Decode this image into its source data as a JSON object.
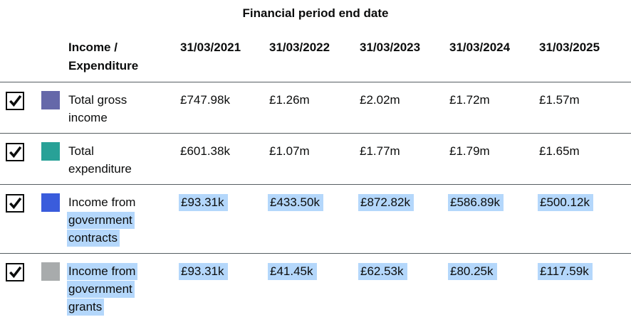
{
  "title": "Financial period end date",
  "header": {
    "row_header_lines": [
      "Income /",
      "Expenditure"
    ],
    "columns": [
      "31/03/2021",
      "31/03/2022",
      "31/03/2023",
      "31/03/2024",
      "31/03/2025"
    ]
  },
  "rows": [
    {
      "checked": true,
      "color": "#6568a9",
      "label_lines": [
        {
          "text": "Total gross",
          "hl": false
        },
        {
          "text": "income",
          "hl": false
        }
      ],
      "values": [
        {
          "text": "£747.98k",
          "hl": false
        },
        {
          "text": "£1.26m",
          "hl": false
        },
        {
          "text": "£2.02m",
          "hl": false
        },
        {
          "text": "£1.72m",
          "hl": false
        },
        {
          "text": "£1.57m",
          "hl": false
        }
      ]
    },
    {
      "checked": true,
      "color": "#28a197",
      "label_lines": [
        {
          "text": "Total",
          "hl": false
        },
        {
          "text": "expenditure",
          "hl": false
        }
      ],
      "values": [
        {
          "text": "£601.38k",
          "hl": false
        },
        {
          "text": "£1.07m",
          "hl": false
        },
        {
          "text": "£1.77m",
          "hl": false
        },
        {
          "text": "£1.79m",
          "hl": false
        },
        {
          "text": "£1.65m",
          "hl": false
        }
      ]
    },
    {
      "checked": true,
      "color": "#3a5cdc",
      "label_lines": [
        {
          "text": "Income from",
          "hl": false
        },
        {
          "text": "government",
          "hl": true
        },
        {
          "text": "contracts",
          "hl": true
        }
      ],
      "values": [
        {
          "text": "£93.31k",
          "hl": true
        },
        {
          "text": "£433.50k",
          "hl": true
        },
        {
          "text": "£872.82k",
          "hl": true
        },
        {
          "text": "£586.89k",
          "hl": true
        },
        {
          "text": "£500.12k",
          "hl": true
        }
      ]
    },
    {
      "checked": true,
      "color": "#a8abac",
      "label_lines": [
        {
          "text": "Income from",
          "hl": true
        },
        {
          "text": "government",
          "hl": true
        },
        {
          "text": "grants",
          "hl": true
        }
      ],
      "values": [
        {
          "text": "£93.31k",
          "hl": true
        },
        {
          "text": "£41.45k",
          "hl": true
        },
        {
          "text": "£62.53k",
          "hl": true
        },
        {
          "text": "£80.25k",
          "hl": true
        },
        {
          "text": "£117.59k",
          "hl": true
        }
      ]
    }
  ],
  "colors": {
    "text": "#0b0c0c",
    "row_border": "#565e62",
    "selection_highlight": "#b4d7fb"
  }
}
